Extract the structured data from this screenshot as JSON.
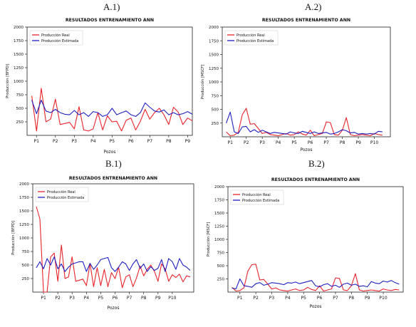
{
  "panel_labels": [
    "A.1)",
    "A.2)",
    "B.1)",
    "B.2)"
  ],
  "colors": {
    "real": "#e8242b",
    "estimada": "#1f1fbf",
    "axis": "#222222"
  },
  "chart_data": [
    {
      "type": "line",
      "title": "RESULTADOS ENTRENAMIENTO ANN",
      "xlabel": "Pozos",
      "ylabel": "Producción [BFPD]",
      "ylim": [
        0,
        2000
      ],
      "yticks": [
        250,
        500,
        750,
        1000,
        1250,
        1500,
        1750,
        2000
      ],
      "xlim": [
        0,
        35
      ],
      "xtick_labels": [
        "P1",
        "P2",
        "P3",
        "P4",
        "P5",
        "P6",
        "P7",
        "P8",
        "P9"
      ],
      "xtick_positions": [
        2,
        6,
        10,
        14,
        18,
        22,
        26,
        30,
        34
      ],
      "legend": "top-left",
      "series": [
        {
          "name": "Producción Real",
          "color": "real",
          "values": [
            730,
            80,
            870,
            250,
            300,
            670,
            200,
            220,
            240,
            120,
            530,
            100,
            80,
            120,
            420,
            100,
            360,
            250,
            260,
            80,
            280,
            320,
            100,
            260,
            480,
            300,
            420,
            500,
            380,
            200,
            520,
            430,
            200,
            320,
            270
          ]
        },
        {
          "name": "Producción Estimada",
          "color": "estimada",
          "values": [
            650,
            400,
            650,
            450,
            420,
            480,
            420,
            390,
            380,
            460,
            380,
            420,
            350,
            440,
            420,
            350,
            380,
            500,
            380,
            420,
            450,
            380,
            350,
            420,
            600,
            520,
            450,
            430,
            470,
            380,
            420,
            380,
            400,
            440,
            390
          ]
        }
      ]
    },
    {
      "type": "line",
      "title": "RESULTADOS ENTRENAMIENTO ANN",
      "xlabel": "Pozos",
      "ylabel": "Producción [MSCF]",
      "ylim": [
        0,
        2000
      ],
      "yticks": [
        250,
        500,
        750,
        1000,
        1250,
        1500,
        1750,
        2000
      ],
      "xlim": [
        0,
        42
      ],
      "xtick_labels": [
        "P1",
        "P2",
        "P3",
        "P4",
        "P5",
        "P6",
        "P7",
        "P8",
        "P9",
        "P10"
      ],
      "xtick_positions": [
        2,
        6,
        10,
        14,
        18,
        22,
        26,
        30,
        34,
        38
      ],
      "legend": "top-left",
      "series": [
        {
          "name": "Producción Real",
          "color": "real",
          "values": [
            90,
            20,
            30,
            80,
            400,
            520,
            230,
            240,
            150,
            60,
            80,
            40,
            30,
            20,
            40,
            60,
            30,
            40,
            90,
            50,
            30,
            120,
            20,
            40,
            60,
            270,
            260,
            40,
            30,
            120,
            350,
            40,
            20,
            30,
            40,
            30,
            20,
            60,
            40,
            30
          ]
        },
        {
          "name": "Producción Estimada",
          "color": "estimada",
          "values": [
            250,
            450,
            90,
            60,
            180,
            190,
            90,
            130,
            80,
            120,
            90,
            60,
            80,
            70,
            60,
            50,
            90,
            70,
            60,
            100,
            80,
            60,
            90,
            60,
            70,
            80,
            50,
            60,
            90,
            130,
            110,
            70,
            80,
            50,
            60,
            50,
            60,
            50,
            100,
            90
          ]
        }
      ]
    },
    {
      "type": "line",
      "title": "RESULTADOS ENTRENAMIENTO ANN",
      "xlabel": "Pozos",
      "ylabel": "Producción [BFPD]",
      "ylim": [
        0,
        2000
      ],
      "yticks": [
        250,
        500,
        750,
        1000,
        1250,
        1500,
        1750,
        2000
      ],
      "xlim": [
        0,
        45
      ],
      "xtick_labels": [
        "P1",
        "P2",
        "P3",
        "P4",
        "P5",
        "P6",
        "P7",
        "P8",
        "P9",
        "P10"
      ],
      "xtick_positions": [
        3,
        7,
        11,
        15,
        19,
        23,
        27,
        31,
        35,
        39
      ],
      "legend": "top-left",
      "series": [
        {
          "name": "Producción Real",
          "color": "real",
          "values": [
            1580,
            1350,
            0,
            0,
            650,
            720,
            200,
            870,
            250,
            280,
            650,
            200,
            220,
            240,
            120,
            530,
            100,
            450,
            120,
            420,
            100,
            360,
            250,
            460,
            80,
            280,
            320,
            100,
            260,
            480,
            300,
            420,
            500,
            380,
            200,
            520,
            430,
            200,
            320,
            270,
            330,
            190,
            300,
            280
          ]
        },
        {
          "name": "Producción Estimada",
          "color": "estimada",
          "values": [
            450,
            560,
            430,
            620,
            500,
            650,
            430,
            520,
            380,
            460,
            520,
            540,
            560,
            560,
            380,
            530,
            420,
            500,
            600,
            620,
            640,
            450,
            380,
            460,
            560,
            520,
            400,
            520,
            600,
            440,
            520,
            380,
            470,
            400,
            440,
            600,
            380,
            620,
            560,
            420,
            620,
            500,
            460,
            400
          ]
        }
      ]
    },
    {
      "type": "line",
      "title": "RESULTADOS ENTRENAMIENTO ANN",
      "xlabel": "Pozos",
      "ylabel": "Producción [MSCF]",
      "ylim": [
        0,
        2000
      ],
      "yticks": [
        250,
        500,
        750,
        1000,
        1250,
        1500,
        1750,
        2000
      ],
      "xlim": [
        0,
        44
      ],
      "xtick_labels": [
        "P1",
        "P2",
        "P3",
        "P4",
        "P5",
        "P6",
        "P7",
        "P8",
        "P9",
        "P10"
      ],
      "xtick_positions": [
        3,
        7,
        11,
        15,
        19,
        23,
        27,
        31,
        35,
        39
      ],
      "legend": "top-left",
      "series": [
        {
          "name": "Producción Real",
          "color": "real",
          "values": [
            90,
            20,
            30,
            80,
            400,
            520,
            530,
            230,
            240,
            150,
            60,
            80,
            40,
            30,
            20,
            40,
            60,
            30,
            40,
            90,
            50,
            30,
            120,
            20,
            40,
            60,
            270,
            260,
            40,
            30,
            120,
            350,
            40,
            20,
            30,
            40,
            30,
            20,
            60,
            40,
            30,
            50,
            40
          ]
        },
        {
          "name": "Producción Estimada",
          "color": "estimada",
          "values": [
            80,
            60,
            250,
            120,
            110,
            90,
            160,
            180,
            130,
            150,
            180,
            170,
            160,
            140,
            180,
            170,
            190,
            160,
            180,
            200,
            220,
            120,
            100,
            140,
            160,
            110,
            130,
            90,
            150,
            170,
            130,
            150,
            110,
            120,
            100,
            200,
            170,
            160,
            210,
            190,
            220,
            180,
            150
          ]
        }
      ]
    }
  ]
}
